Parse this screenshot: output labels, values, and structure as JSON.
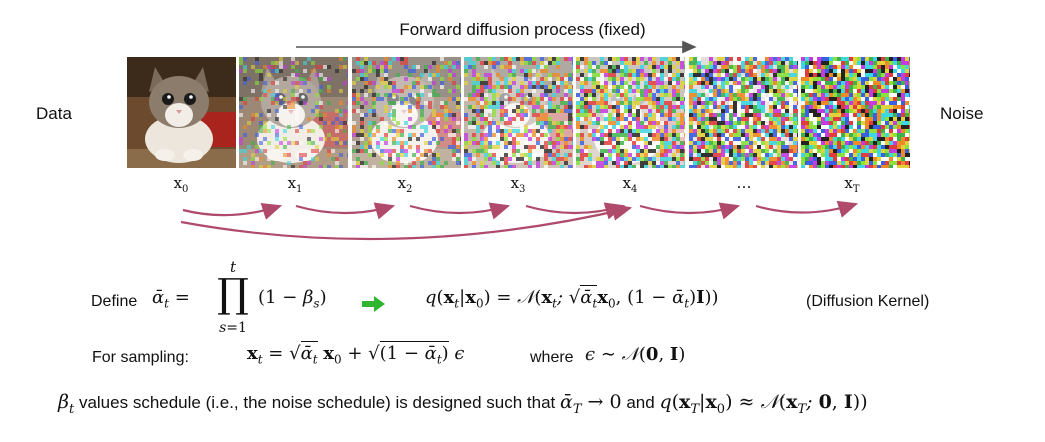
{
  "title": "Forward diffusion process (fixed)",
  "left_label": "Data",
  "right_label": "Noise",
  "frames": [
    {
      "label": "x",
      "sub": "0",
      "noise": 0.0
    },
    {
      "label": "x",
      "sub": "1",
      "noise": 0.35
    },
    {
      "label": "x",
      "sub": "2",
      "noise": 0.5
    },
    {
      "label": "x",
      "sub": "3",
      "noise": 0.62
    },
    {
      "label": "x",
      "sub": "4",
      "noise": 0.75
    },
    {
      "label": "…",
      "sub": "",
      "noise": 0.88
    },
    {
      "label": "x",
      "sub": "T",
      "noise": 1.0
    }
  ],
  "colors": {
    "arrow_gray": "#555555",
    "curve_arrow": "#b04a6a",
    "green_arrow": "#2fb52f"
  },
  "equations": {
    "define_label": "Define",
    "kernel_label": "(Diffusion Kernel)",
    "sampling_label": "For sampling:",
    "where_label": "where",
    "schedule_text_1": "values schedule (i.e., the noise schedule) is designed such that",
    "schedule_text_and": "and"
  }
}
